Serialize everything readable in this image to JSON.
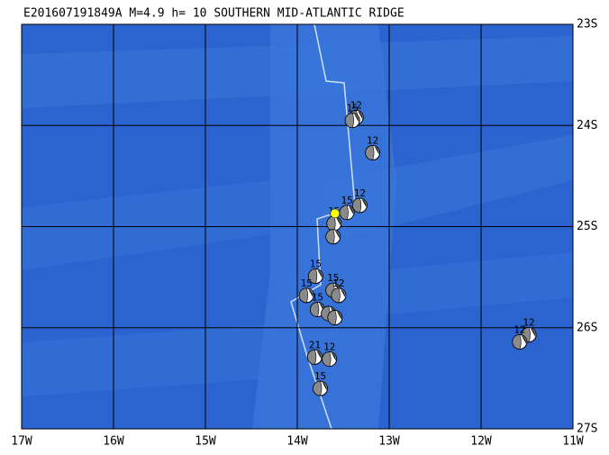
{
  "title": "E201607191849A M=4.9 h= 10 SOUTHERN MID-ATLANTIC RIDGE",
  "map": {
    "xlim": [
      -17,
      -11
    ],
    "ylim": [
      -27,
      -23
    ],
    "xticks": [
      {
        "value": -17,
        "label": "17W"
      },
      {
        "value": -16,
        "label": "16W"
      },
      {
        "value": -15,
        "label": "15W"
      },
      {
        "value": -14,
        "label": "14W"
      },
      {
        "value": -13,
        "label": "13W"
      },
      {
        "value": -12,
        "label": "12W"
      },
      {
        "value": -11,
        "label": "11W"
      }
    ],
    "yticks": [
      {
        "value": -23,
        "label": "23S"
      },
      {
        "value": -24,
        "label": "24S"
      },
      {
        "value": -25,
        "label": "25S"
      },
      {
        "value": -26,
        "label": "26S"
      },
      {
        "value": -27,
        "label": "27S"
      }
    ],
    "grid": true,
    "epicenter": {
      "lon": -13.59,
      "lat": -24.87,
      "color": "#ffff00"
    },
    "events": [
      {
        "lon": -13.36,
        "lat": -23.92,
        "label": "12"
      },
      {
        "lon": -13.4,
        "lat": -23.95,
        "label": "15"
      },
      {
        "lon": -13.18,
        "lat": -24.27,
        "label": "12"
      },
      {
        "lon": -13.32,
        "lat": -24.79,
        "label": "12"
      },
      {
        "lon": -13.46,
        "lat": -24.86,
        "label": "15"
      },
      {
        "lon": -13.6,
        "lat": -24.97,
        "label": "15"
      },
      {
        "lon": -13.61,
        "lat": -25.1
      },
      {
        "lon": -13.8,
        "lat": -25.49,
        "label": "15"
      },
      {
        "lon": -13.9,
        "lat": -25.68,
        "label": "15"
      },
      {
        "lon": -13.61,
        "lat": -25.63,
        "label": "15"
      },
      {
        "lon": -13.55,
        "lat": -25.68,
        "label": "12"
      },
      {
        "lon": -13.78,
        "lat": -25.82,
        "label": "15"
      },
      {
        "lon": -13.66,
        "lat": -25.86
      },
      {
        "lon": -13.59,
        "lat": -25.9
      },
      {
        "lon": -13.81,
        "lat": -26.29,
        "label": "21"
      },
      {
        "lon": -13.65,
        "lat": -26.31,
        "label": "12"
      },
      {
        "lon": -13.75,
        "lat": -26.6,
        "label": "15"
      },
      {
        "lon": -11.48,
        "lat": -26.07,
        "label": "12"
      },
      {
        "lon": -11.58,
        "lat": -26.14,
        "label": "12"
      }
    ]
  }
}
